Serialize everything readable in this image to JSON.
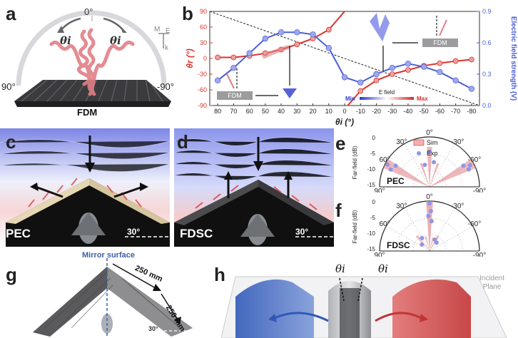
{
  "panels": {
    "a": {
      "letter": "a",
      "top_angle": "0°",
      "left_angle": "90°",
      "right_angle": "-90°",
      "label": "FDM",
      "theta_left": "θi",
      "theta_right": "θi",
      "axis_m": "M",
      "axis_e": "E",
      "axis_k": "k"
    },
    "b": {
      "letter": "b"
    },
    "c": {
      "letter": "c",
      "label": "PEC",
      "angle": "30°"
    },
    "d": {
      "letter": "d",
      "label": "FDSC",
      "angle": "30°"
    },
    "e": {
      "letter": "e",
      "material": "PEC",
      "ylabel": "Far-field (dB)",
      "legend_sim": "Sim",
      "legend_exp": "Exp",
      "angle_labels": [
        "0°",
        "30°",
        "-30°",
        "60°",
        "-60°",
        "90°",
        "-90°"
      ],
      "r_ticks": [
        "0",
        "-5",
        "-10",
        "-15"
      ]
    },
    "f": {
      "letter": "f",
      "material": "FDSC",
      "ylabel": "Far-field (dB)",
      "angle_labels": [
        "0°",
        "30°",
        "-30°",
        "60°",
        "-60°",
        "90°",
        "-90°"
      ],
      "r_ticks": [
        "0",
        "-5",
        "-10",
        "-15"
      ]
    },
    "g": {
      "letter": "g",
      "mirror": "Mirror surface",
      "dim1": "250 mm",
      "dim2": "250 mm",
      "angle": "30°"
    },
    "h": {
      "letter": "h",
      "theta_left": "θi",
      "theta_right": "θi",
      "incident_plane": "Incident\nPlane",
      "incident_line1": "Incident",
      "incident_line2": "Plane"
    }
  },
  "chart_data": {
    "type": "line",
    "title": "",
    "xlabel": "θi (°)",
    "ylabel_left": "θr (°)",
    "ylabel_right": "Electric field strength (V)",
    "x_ticks": [
      80,
      70,
      60,
      50,
      40,
      30,
      20,
      10,
      0,
      -10,
      -20,
      -30,
      -40,
      -50,
      -60,
      -70,
      -80
    ],
    "y_left_ticks": [
      90,
      60,
      30,
      0,
      -30,
      -60,
      -90
    ],
    "y_right_ticks": [
      0.9,
      0.6,
      0.3,
      0.0
    ],
    "ylim_left": [
      -90,
      90
    ],
    "ylim_right": [
      0.0,
      0.9
    ],
    "xlim": [
      85,
      -85
    ],
    "inset_label_1": "FDM",
    "inset_label_2": "FDM",
    "efield_label": "E field",
    "efield_min": "Min",
    "efield_max": "Max",
    "series": [
      {
        "name": "θr",
        "axis": "left",
        "color": "#d9342b",
        "x": [
          80,
          70,
          60,
          50,
          40,
          30,
          20,
          10,
          0,
          -10,
          -20,
          -30,
          -40,
          -50,
          -60,
          -70,
          -80
        ],
        "y": [
          2,
          2,
          5,
          10,
          17,
          27,
          38,
          55,
          90,
          -62,
          -42,
          -30,
          -22,
          -14,
          -9,
          -5,
          -2
        ]
      },
      {
        "name": "Electric field strength",
        "axis": "right",
        "color": "#4a5fd6",
        "x": [
          80,
          70,
          60,
          50,
          40,
          30,
          20,
          10,
          0,
          -10,
          -20,
          -30,
          -40,
          -50,
          -60,
          -70,
          -80
        ],
        "y": [
          0.24,
          0.36,
          0.5,
          0.64,
          0.7,
          0.7,
          0.68,
          0.55,
          0.27,
          0.22,
          0.3,
          0.36,
          0.4,
          0.37,
          0.32,
          0.24,
          0.16
        ]
      },
      {
        "name": "diagonal",
        "axis": "left",
        "color": "#222222",
        "dashed": true,
        "x": [
          85,
          -85
        ],
        "y": [
          90,
          -90
        ]
      }
    ]
  }
}
